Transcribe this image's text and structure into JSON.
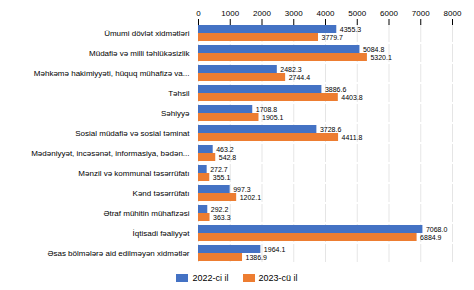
{
  "chart_data": {
    "type": "bar",
    "orientation": "horizontal",
    "categories": [
      "Ümumi dövlət xidmətləri",
      "Müdafiə və milli təhlükəsizlik",
      "Məhkəmə hakimiyyəti, hüquq mühafizə va...",
      "Təhsil",
      "Səhiyyə",
      "Sosial müdafiə və sosial təminat",
      "Mədəniyyət, incəsənət, informasiya, bədən...",
      "Mənzil və kommunal təsərrüfatı",
      "Kənd təsərrüfatı",
      "Ətraf mühitin mühafizəsi",
      "İqtisadi fəaliyyət",
      "Əsas bölmələrə aid edilməyən xidmətlər"
    ],
    "series": [
      {
        "name": "2022-ci il",
        "color": "#4472C4",
        "values": [
          4355.3,
          5084.8,
          2482.3,
          3886.6,
          1708.8,
          3728.6,
          463.2,
          272.7,
          997.3,
          292.2,
          7068.0,
          1964.1
        ],
        "value_labels": [
          "4355.3",
          "5084.8",
          "2482.3",
          "3886.6",
          "1708.8",
          "3728.6",
          "463.2",
          "272.7",
          "997.3",
          "292.2",
          "7068.0",
          "1964.1"
        ]
      },
      {
        "name": "2023-cü il",
        "color": "#ED7D31",
        "values": [
          3779.7,
          5320.1,
          2744.4,
          4403.8,
          1905.1,
          4411.8,
          542.8,
          355.1,
          1202.1,
          363.3,
          6884.9,
          1386.9
        ],
        "value_labels": [
          "3779.7",
          "5320.1",
          "2744.4",
          "4403.8",
          "1905.1",
          "4411.8",
          "542.8",
          "355.1",
          "1202.1",
          "363.3",
          "6884.9",
          "1386.9"
        ]
      }
    ],
    "xlim": [
      0,
      8000
    ],
    "xticks": [
      0,
      1000,
      2000,
      3000,
      4000,
      5000,
      6000,
      7000,
      8000
    ],
    "grid": true,
    "data_labels": true,
    "legend": "bottom"
  }
}
